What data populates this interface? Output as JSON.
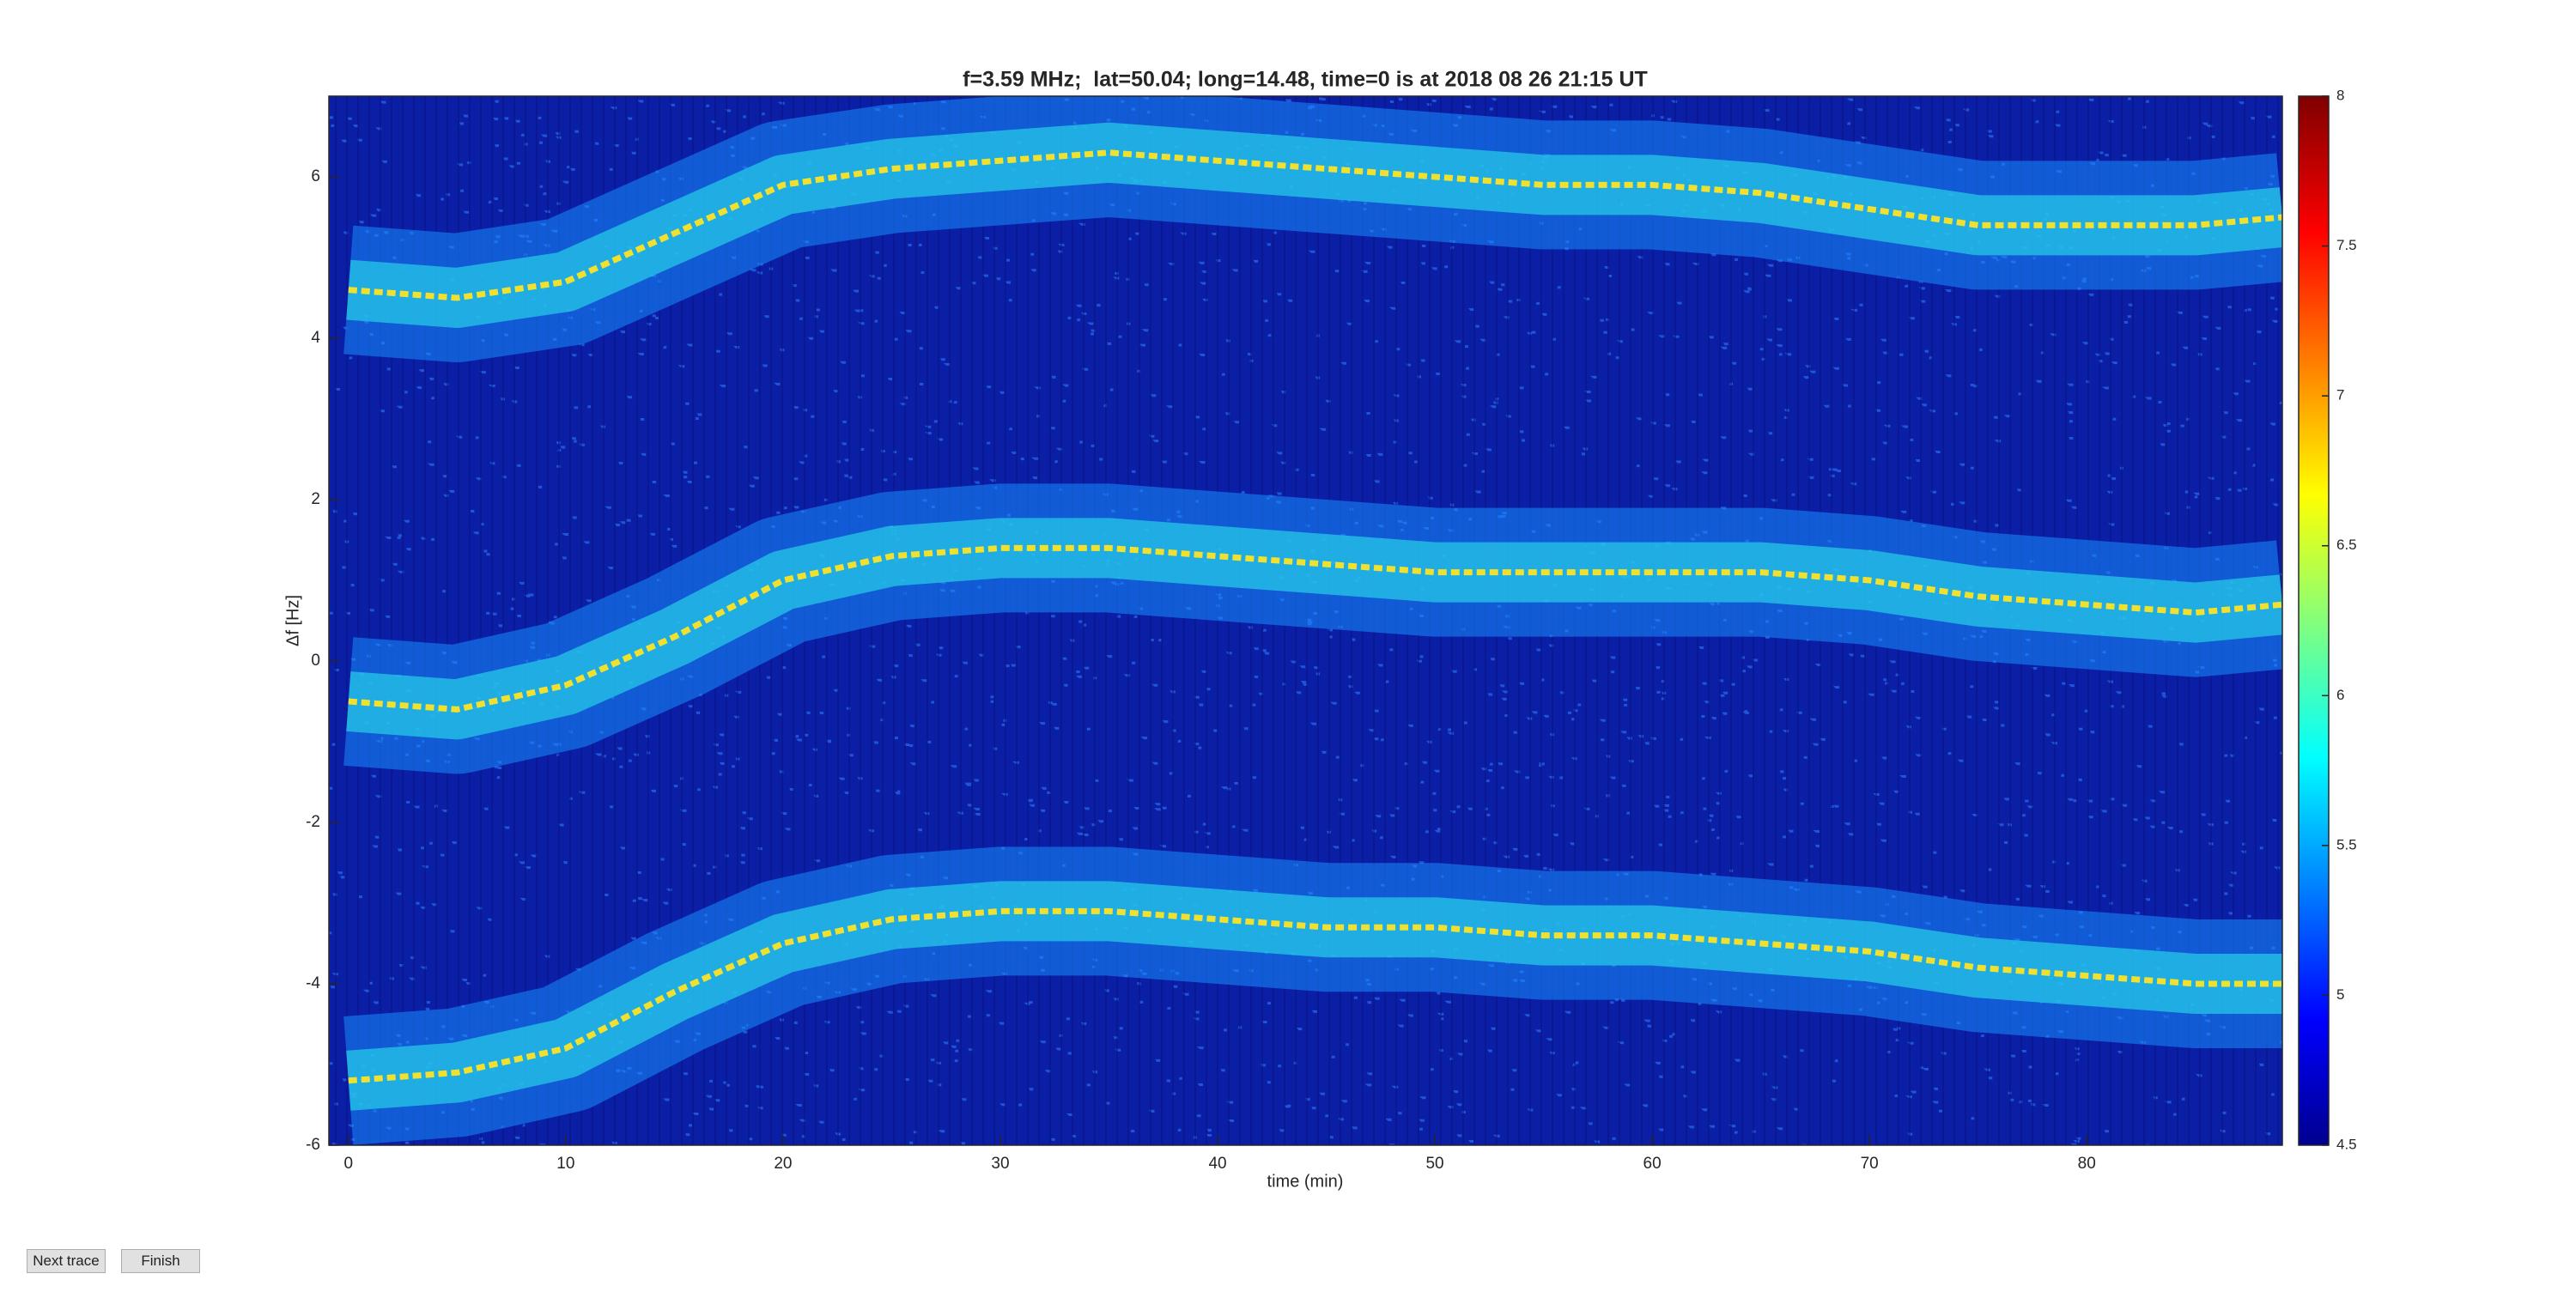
{
  "chart_data": {
    "type": "spectrogram",
    "title": "f=3.59 MHz;  lat=50.04; long=14.48, time=0 is at 2018 08 26 21:15 UT",
    "x_label": "time (min)",
    "y_label": "Δf [Hz]",
    "x": [
      0,
      5,
      10,
      15,
      20,
      25,
      30,
      35,
      40,
      45,
      50,
      55,
      60,
      65,
      70,
      75,
      80,
      85,
      89
    ],
    "series": [
      {
        "color": "#f0e030",
        "values": [
          4.6,
          4.5,
          4.7,
          5.3,
          5.9,
          6.1,
          6.2,
          6.3,
          6.2,
          6.1,
          6.0,
          5.9,
          5.9,
          5.8,
          5.6,
          5.4,
          5.4,
          5.4,
          5.5
        ]
      },
      {
        "color": "#f0e030",
        "values": [
          -0.5,
          -0.6,
          -0.3,
          0.3,
          1.0,
          1.3,
          1.4,
          1.4,
          1.3,
          1.2,
          1.1,
          1.1,
          1.1,
          1.1,
          1.0,
          0.8,
          0.7,
          0.6,
          0.7
        ]
      },
      {
        "color": "#f0e030",
        "values": [
          -5.2,
          -5.1,
          -4.8,
          -4.1,
          -3.5,
          -3.2,
          -3.1,
          -3.1,
          -3.2,
          -3.3,
          -3.3,
          -3.4,
          -3.4,
          -3.5,
          -3.6,
          -3.8,
          -3.9,
          -4.0,
          -4.0
        ]
      }
    ],
    "xlim": [
      -0.9,
      89
    ],
    "xticks": [
      0,
      10,
      20,
      30,
      40,
      50,
      60,
      70,
      80
    ],
    "ylim": [
      -6,
      7
    ],
    "yticks": [
      -6,
      -4,
      -2,
      0,
      2,
      4,
      6
    ],
    "clim": [
      4.5,
      8
    ],
    "cticks": [
      4.5,
      5,
      5.5,
      6,
      6.5,
      7,
      7.5,
      8
    ],
    "colormap": "jet"
  },
  "buttons": [
    "Next trace",
    "Finish"
  ]
}
